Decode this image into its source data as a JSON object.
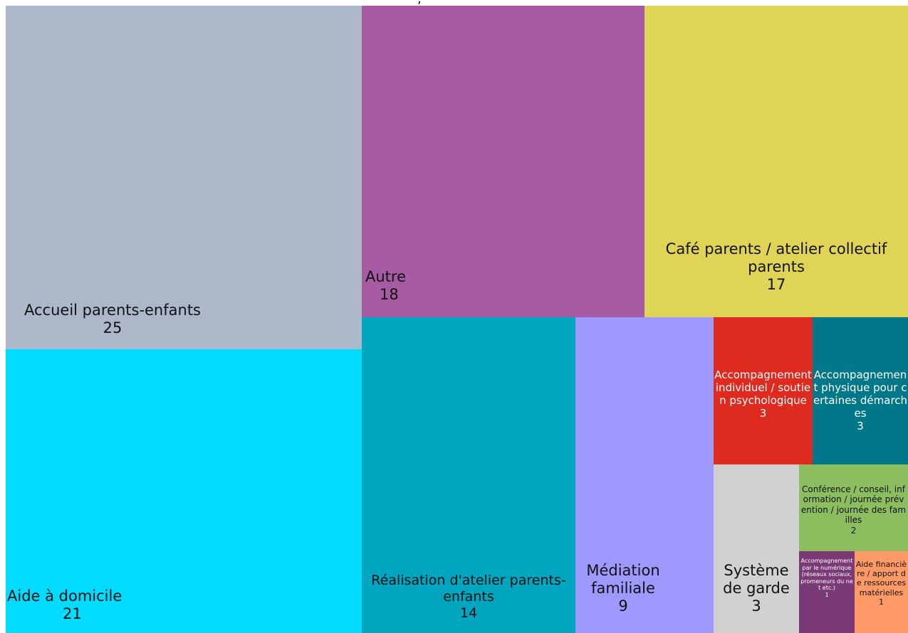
{
  "chart_data": {
    "type": "treemap",
    "items": [
      {
        "key": "accueil",
        "label": "Accueil parents-enfants",
        "value": 25,
        "color": "#acb8c9",
        "text_color": "#111111"
      },
      {
        "key": "aide-domicile",
        "label": "Aide à domicile",
        "value": 21,
        "color": "#00dbff",
        "text_color": "#111111"
      },
      {
        "key": "autre",
        "label": "Autre",
        "value": 18,
        "color": "#a65ba3",
        "text_color": "#111111"
      },
      {
        "key": "cafe",
        "label": "Café parents / atelier collectif parents",
        "value": 17,
        "color": "#dfd455",
        "text_color": "#111111"
      },
      {
        "key": "realisation",
        "label": "Réalisation d'atelier parents-enfants",
        "value": 14,
        "color": "#00a5bf",
        "text_color": "#111111"
      },
      {
        "key": "mediation",
        "label": "Médiation familiale",
        "value": 9,
        "color": "#9e98ff",
        "text_color": "#111111"
      },
      {
        "key": "acc-individuel",
        "label": "Accompagnement individuel / soutien psychologique",
        "value": 3,
        "color": "#df2a20",
        "text_color": "#ffffff"
      },
      {
        "key": "acc-physique",
        "label": "Accompagnement physique pour certaines démarches",
        "value": 3,
        "color": "#00788a",
        "text_color": "#ffffff"
      },
      {
        "key": "systeme-garde",
        "label": "Système de garde",
        "value": 3,
        "color": "#d1d0d2",
        "text_color": "#111111"
      },
      {
        "key": "conference",
        "label": "Conférence / conseil, information / journée prévention / journée des familles",
        "value": 2,
        "color": "#8cbe60",
        "text_color": "#111111"
      },
      {
        "key": "acc-numerique",
        "label": "Accompagnement par le numérique (réseaux sociaux, promeneurs du net etc.)",
        "value": 1,
        "color": "#7a3a75",
        "text_color": "#ffffff"
      },
      {
        "key": "aide-financiere",
        "label": "Aide financière / apport de ressources matérielles",
        "value": 1,
        "color": "#ff9a66",
        "text_color": "#111111"
      }
    ]
  }
}
